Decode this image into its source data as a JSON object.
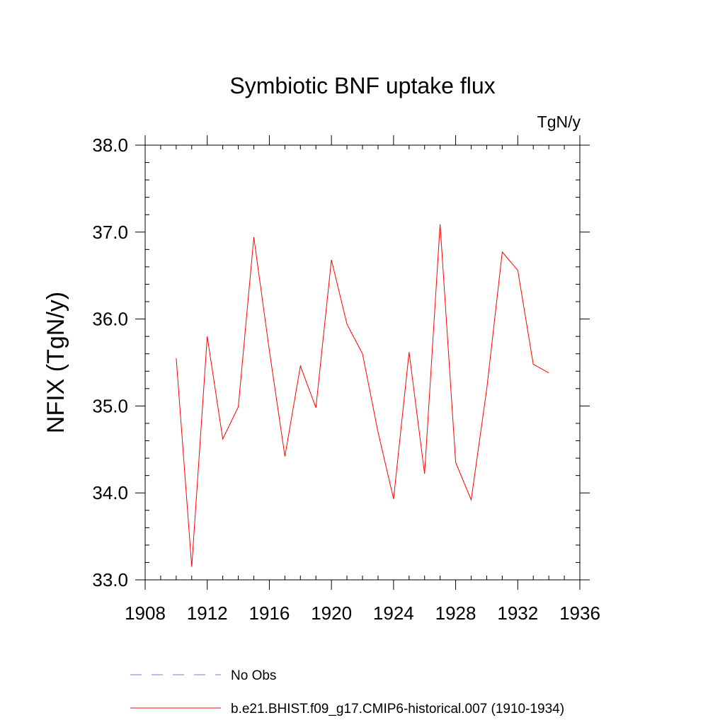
{
  "chart_data": {
    "type": "line",
    "title": "Symbiotic BNF uptake flux",
    "units_label": "TgN/y",
    "xlabel": "",
    "ylabel": "NFIX  (TgN/y)",
    "xlim": [
      1908,
      1936
    ],
    "ylim": [
      33.0,
      38.0
    ],
    "xticks": [
      "1908",
      "1912",
      "1916",
      "1920",
      "1924",
      "1928",
      "1932",
      "1936"
    ],
    "yticks": [
      "33.0",
      "34.0",
      "35.0",
      "36.0",
      "37.0",
      "38.0"
    ],
    "grid": false,
    "legend_position": "bottom",
    "series": [
      {
        "name": "b.e21.BHIST.f09_g17.CMIP6-historical.007 (1910-1934)",
        "color": "#ff0000",
        "line_style": "solid",
        "x": [
          1910,
          1911,
          1912,
          1913,
          1914,
          1915,
          1916,
          1917,
          1918,
          1919,
          1920,
          1921,
          1922,
          1923,
          1924,
          1925,
          1926,
          1927,
          1928,
          1929,
          1930,
          1931,
          1932,
          1933,
          1934
        ],
        "y": [
          35.55,
          33.15,
          35.8,
          34.62,
          34.99,
          36.94,
          35.64,
          34.42,
          35.46,
          34.98,
          36.68,
          35.94,
          35.6,
          34.7,
          33.93,
          35.62,
          34.22,
          37.09,
          34.35,
          33.92,
          35.19,
          36.77,
          36.56,
          35.48,
          35.38
        ]
      }
    ],
    "legend": [
      {
        "label": "No Obs",
        "color": "#7b7bd0",
        "line_style": "dashed"
      },
      {
        "label": "b.e21.BHIST.f09_g17.CMIP6-historical.007 (1910-1934)",
        "color": "#ff0000",
        "line_style": "solid"
      }
    ]
  }
}
